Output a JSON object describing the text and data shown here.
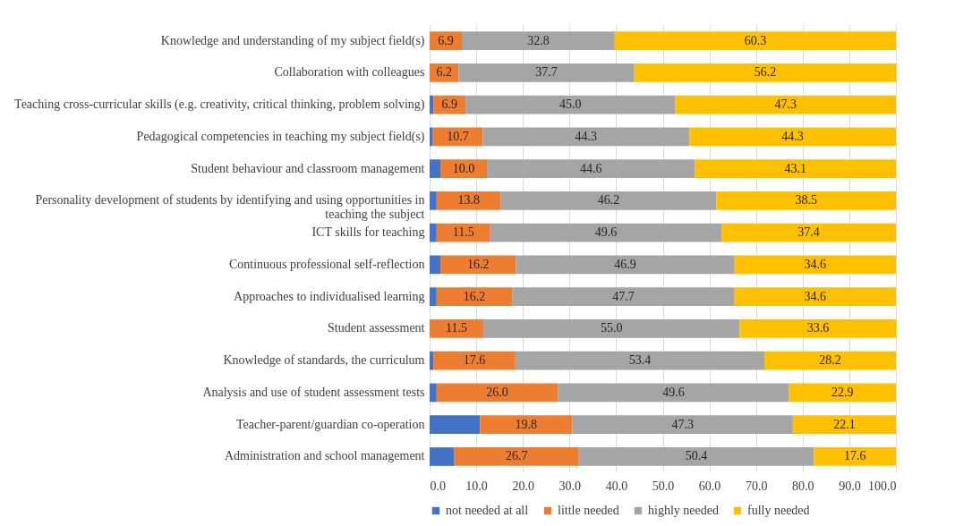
{
  "chart_data": {
    "type": "bar",
    "orientation": "horizontal",
    "stacked": true,
    "categories": [
      "Knowledge and understanding of my subject field(s)",
      "Collaboration with colleagues",
      "Teaching cross-curricular skills (e.g. creativity, critical thinking, problem solving)",
      "Pedagogical competencies in teaching my subject field(s)",
      "Student behaviour and classroom management",
      "Personality development of students by identifying and using opportunities in teaching the subject",
      "ICT skills for teaching",
      "Continuous professional self-reflection",
      "Approaches to individualised learning",
      "Student assessment",
      "Knowledge of standards, the curriculum",
      "Analysis and use of student assessment tests",
      "Teacher-parent/guardian co-operation",
      "Administration and school management"
    ],
    "series": [
      {
        "name": "not needed at all",
        "color": "#4472c4",
        "values": [
          0,
          0,
          0.8,
          0.7,
          2.3,
          1.5,
          1.5,
          2.3,
          1.5,
          0,
          0.8,
          1.5,
          10.8,
          5.3
        ]
      },
      {
        "name": "little needed",
        "color": "#ed7d31",
        "values": [
          6.9,
          6.2,
          6.9,
          10.7,
          10.0,
          13.8,
          11.5,
          16.2,
          16.2,
          11.5,
          17.6,
          26.0,
          19.8,
          26.7
        ],
        "value_labels": [
          "6.9",
          "6.2",
          "6.9",
          "10.7",
          "10.0",
          "13.8",
          "11.5",
          "16.2",
          "16.2",
          "11.5",
          "17.6",
          "26.0",
          "19.8",
          "26.7"
        ]
      },
      {
        "name": "highly needed",
        "color": "#a5a5a5",
        "values": [
          32.8,
          37.7,
          45.0,
          44.3,
          44.6,
          46.2,
          49.6,
          46.9,
          47.7,
          55.0,
          53.4,
          49.6,
          47.3,
          50.4
        ],
        "value_labels": [
          "32.8",
          "37.7",
          "45.0",
          "44.3",
          "44.6",
          "46.2",
          "49.6",
          "46.9",
          "47.7",
          "55.0",
          "53.4",
          "49.6",
          "47.3",
          "50.4"
        ]
      },
      {
        "name": "fully needed",
        "color": "#ffc000",
        "values": [
          60.3,
          56.2,
          47.3,
          44.3,
          43.1,
          38.5,
          37.4,
          34.6,
          34.6,
          33.6,
          28.2,
          22.9,
          22.1,
          17.6
        ],
        "value_labels": [
          "60.3",
          "56.2",
          "47.3",
          "44.3",
          "43.1",
          "38.5",
          "37.4",
          "34.6",
          "34.6",
          "33.6",
          "28.2",
          "22.9",
          "22.1",
          "17.6"
        ]
      }
    ],
    "xlim": [
      0,
      100
    ],
    "xticks": [
      {
        "value": 0,
        "label": "0.0"
      },
      {
        "value": 10,
        "label": "10.0"
      },
      {
        "value": 20,
        "label": "20.0"
      },
      {
        "value": 30,
        "label": "30.0"
      },
      {
        "value": 40,
        "label": "40.0"
      },
      {
        "value": 50,
        "label": "50.0"
      },
      {
        "value": 60,
        "label": "60.0"
      },
      {
        "value": 70,
        "label": "70.0"
      },
      {
        "value": 80,
        "label": "80.0"
      },
      {
        "value": 90,
        "label": "90.0"
      },
      {
        "value": 100,
        "label": "100.0"
      }
    ],
    "grid": true,
    "legend": "bottom"
  }
}
